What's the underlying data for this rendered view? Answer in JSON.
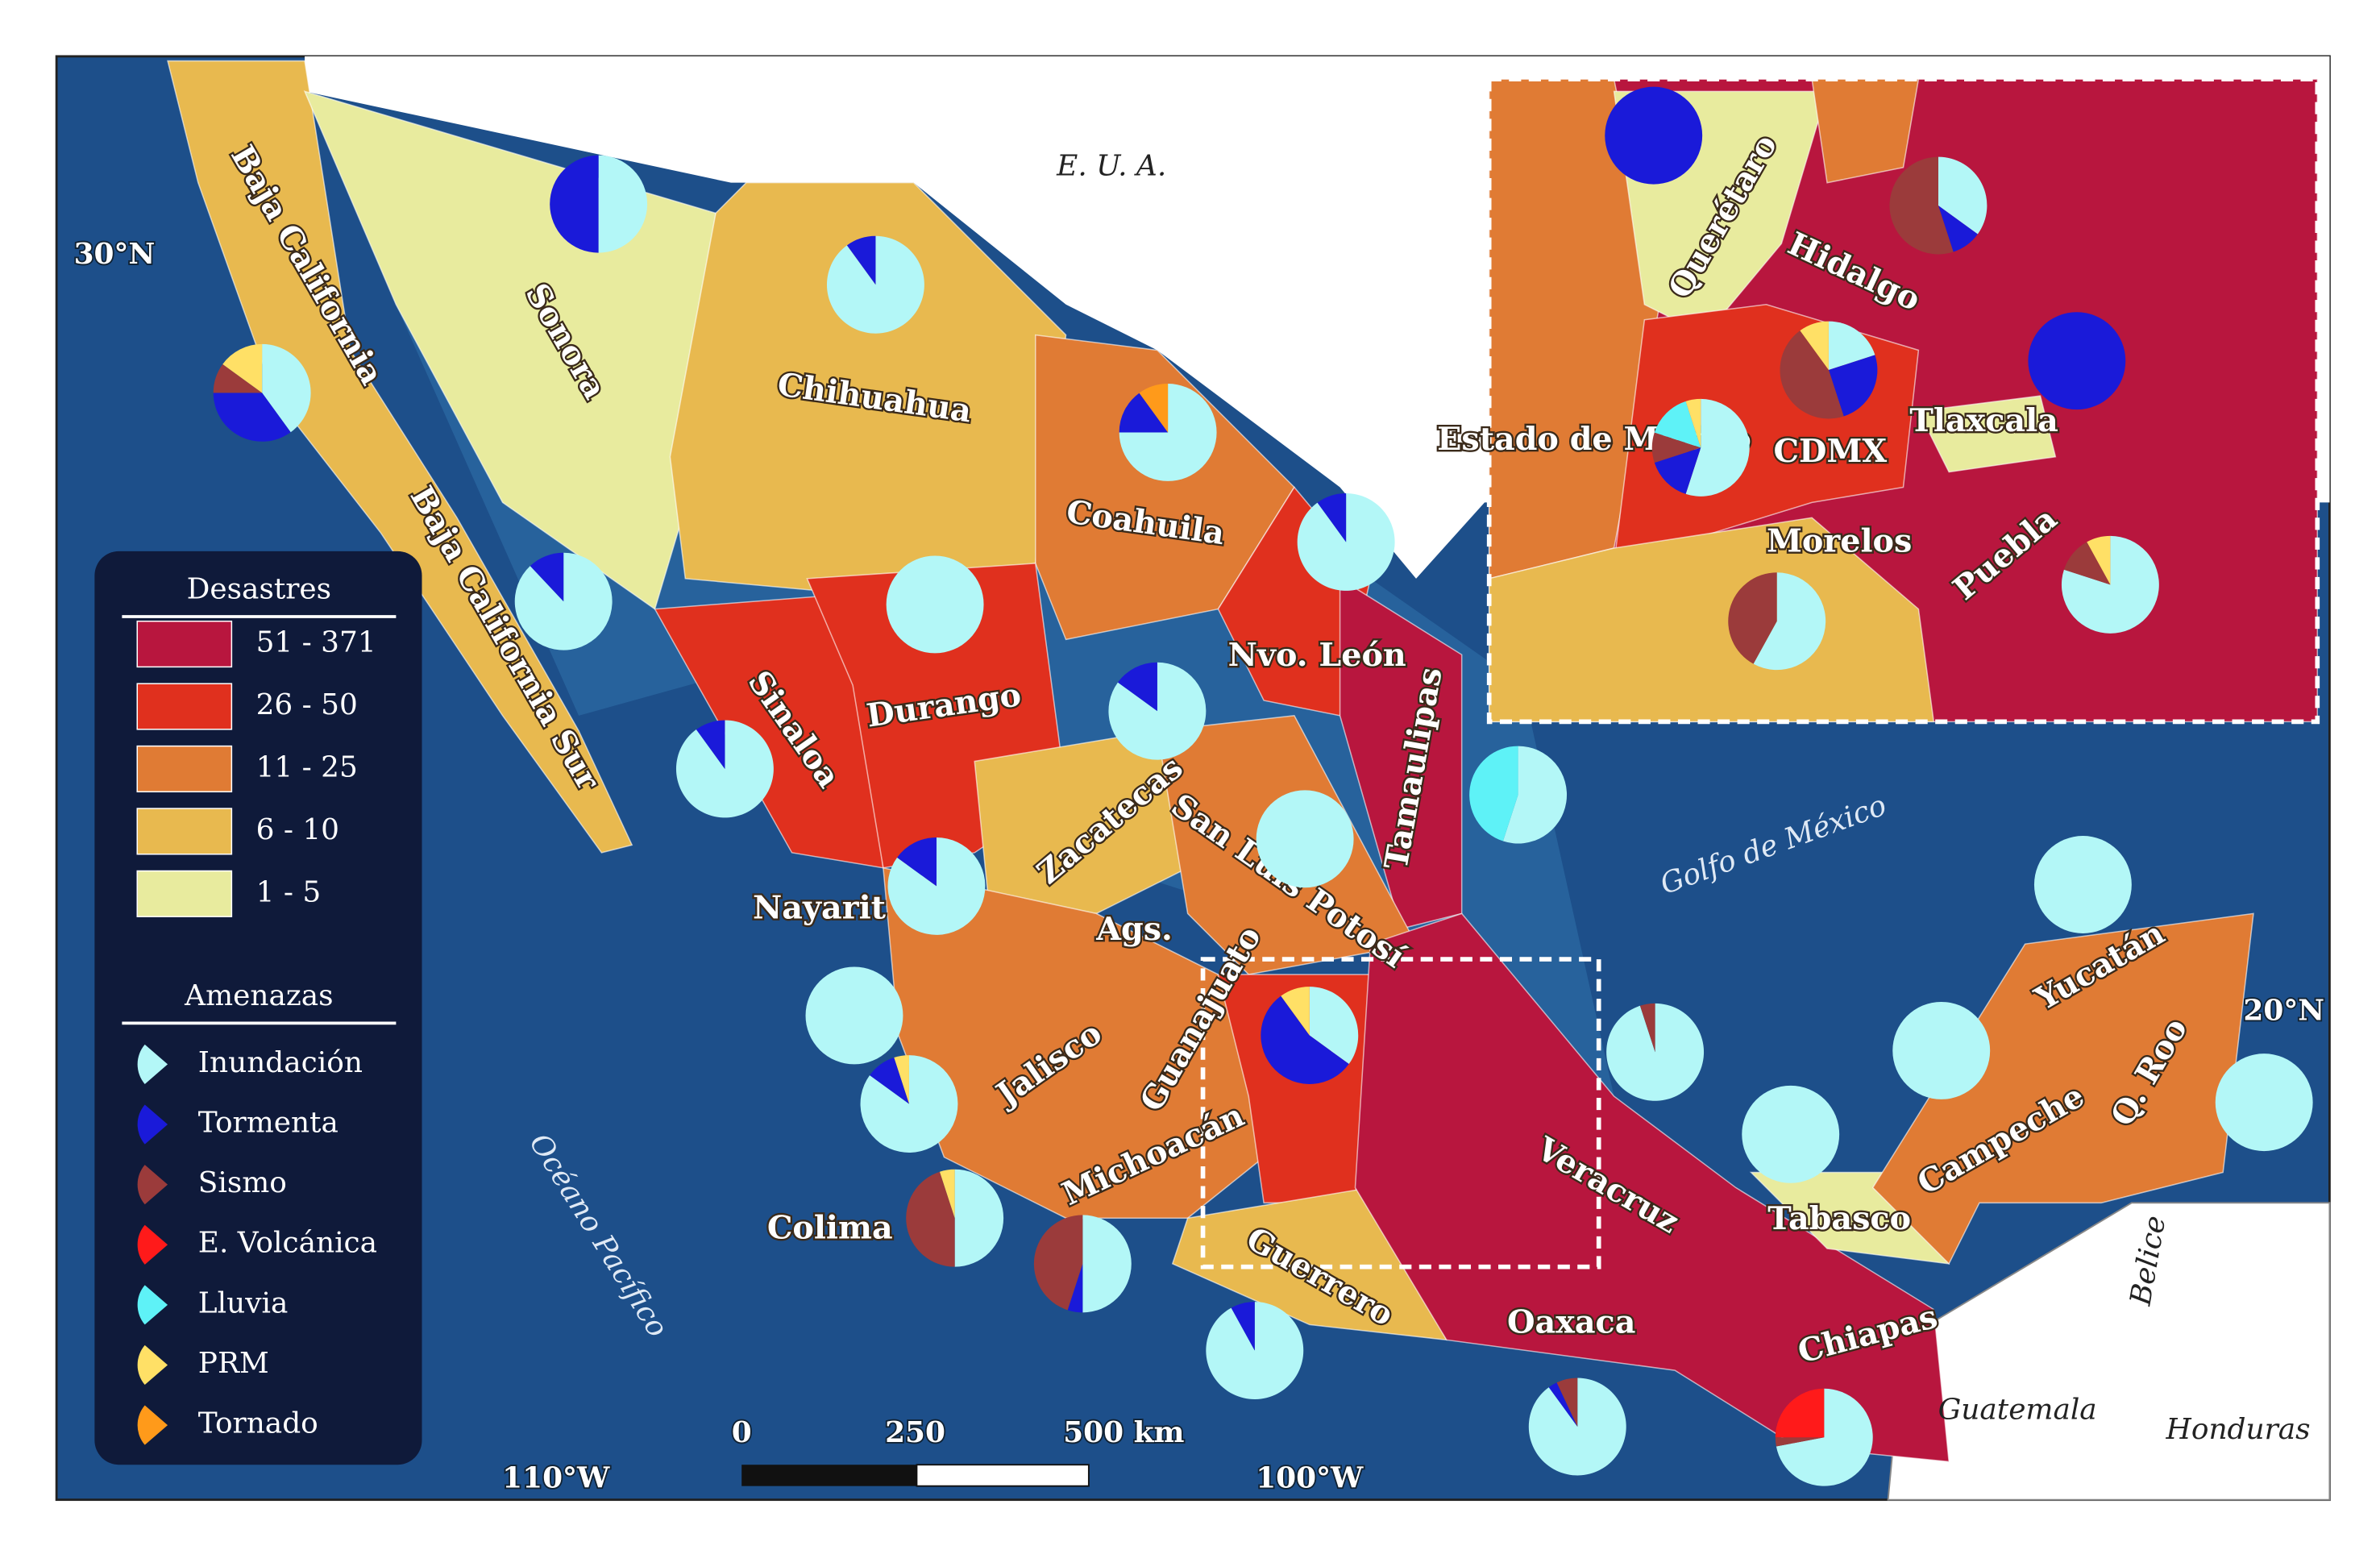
{
  "map": {
    "neighbors": [
      "E. U. A.",
      "Guatemala",
      "Honduras",
      "Belice"
    ],
    "water": [
      "Golfo de México",
      "Océano Pacífico"
    ],
    "graticule": [
      "30°N",
      "20°N",
      "110°W",
      "100°W"
    ],
    "scale": [
      "0",
      "250",
      "500 km"
    ],
    "states": [
      "Baja California",
      "Baja California Sur",
      "Sonora",
      "Chihuahua",
      "Coahuila",
      "Nvo. León",
      "Tamaulipas",
      "Sinaloa",
      "Durango",
      "Zacatecas",
      "San Luis Potosí",
      "Nayarit",
      "Ags.",
      "Guanajuato",
      "Jalisco",
      "Michoacán",
      "Colima",
      "Guerrero",
      "Oaxaca",
      "Veracruz",
      "Tabasco",
      "Campeche",
      "Q. Roo",
      "Yucatán",
      "Chiapas"
    ],
    "inset_states": [
      "Querétaro",
      "Hidalgo",
      "Estado de México",
      "CDMX",
      "Tlaxcala",
      "Morelos",
      "Puebla"
    ],
    "legend": {
      "disasters_title": "Desastres",
      "classes": [
        {
          "label": "51 - 371",
          "color": "#b8163e"
        },
        {
          "label": "26 - 50",
          "color": "#e0301e"
        },
        {
          "label": "11 - 25",
          "color": "#e07b34"
        },
        {
          "label": "6 - 10",
          "color": "#e8b94f"
        },
        {
          "label": "1 - 5",
          "color": "#e8eb9e"
        }
      ],
      "hazards_title": "Amenazas",
      "hazards": [
        {
          "name": "Inundación",
          "color": "#b3f7f7"
        },
        {
          "name": "Tormenta",
          "color": "#1a1ad9"
        },
        {
          "name": "Sismo",
          "color": "#9b3b3b"
        },
        {
          "name": "E. Volcánica",
          "color": "#ff1a1a"
        },
        {
          "name": "Lluvia",
          "color": "#5ef2f7"
        },
        {
          "name": "PRM",
          "color": "#ffe066"
        },
        {
          "name": "Tornado",
          "color": "#ff9a1a"
        }
      ]
    },
    "pies": [
      {
        "values": [
          50,
          50,
          0,
          0,
          0,
          0,
          0
        ]
      },
      {
        "values": [
          90,
          10,
          0,
          0,
          0,
          0,
          0
        ]
      },
      {
        "values": [
          40,
          35,
          10,
          0,
          0,
          15,
          0
        ]
      },
      {
        "values": [
          75,
          15,
          0,
          0,
          0,
          0,
          10
        ]
      },
      {
        "values": [
          90,
          10,
          0,
          0,
          0,
          0,
          0
        ]
      },
      {
        "values": [
          88,
          12,
          0,
          0,
          0,
          0,
          0
        ]
      },
      {
        "values": [
          100,
          0,
          0,
          0,
          0,
          0,
          0
        ]
      },
      {
        "values": [
          85,
          15,
          0,
          0,
          0,
          0,
          0
        ]
      },
      {
        "values": [
          90,
          10,
          0,
          0,
          0,
          0,
          0
        ]
      },
      {
        "values": [
          55,
          0,
          0,
          0,
          45,
          0,
          0
        ]
      },
      {
        "values": [
          100,
          0,
          0,
          0,
          0,
          0,
          0
        ]
      },
      {
        "values": [
          85,
          15,
          0,
          0,
          0,
          0,
          0
        ]
      },
      {
        "values": [
          100,
          0,
          0,
          0,
          0,
          0,
          0
        ]
      },
      {
        "values": [
          100,
          0,
          0,
          0,
          0,
          0,
          0
        ]
      },
      {
        "values": [
          35,
          55,
          0,
          0,
          0,
          10,
          0
        ]
      },
      {
        "values": [
          95,
          0,
          5,
          0,
          0,
          0,
          0
        ]
      },
      {
        "values": [
          100,
          0,
          0,
          0,
          0,
          0,
          0
        ]
      },
      {
        "values": [
          100,
          0,
          0,
          0,
          0,
          0,
          0
        ]
      },
      {
        "values": [
          85,
          10,
          0,
          0,
          0,
          5,
          0
        ]
      },
      {
        "values": [
          100,
          0,
          0,
          0,
          0,
          0,
          0
        ]
      },
      {
        "values": [
          50,
          0,
          45,
          0,
          0,
          5,
          0
        ]
      },
      {
        "values": [
          50,
          5,
          45,
          0,
          0,
          0,
          0
        ]
      },
      {
        "values": [
          92,
          8,
          0,
          0,
          0,
          0,
          0
        ]
      },
      {
        "values": [
          90,
          3,
          7,
          0,
          0,
          0,
          0
        ]
      },
      {
        "values": [
          72,
          0,
          3,
          25,
          0,
          0,
          0
        ]
      },
      {
        "values": [
          0,
          100,
          0,
          0,
          0,
          0,
          0
        ]
      },
      {
        "values": [
          35,
          10,
          55,
          0,
          0,
          0,
          0
        ]
      },
      {
        "values": [
          20,
          25,
          45,
          0,
          0,
          10,
          0
        ]
      },
      {
        "values": [
          0,
          100,
          0,
          0,
          0,
          0,
          0
        ]
      },
      {
        "values": [
          55,
          15,
          10,
          0,
          15,
          5,
          0
        ]
      },
      {
        "values": [
          80,
          0,
          12,
          0,
          0,
          8,
          0
        ]
      },
      {
        "values": [
          58,
          0,
          42,
          0,
          0,
          0,
          0
        ]
      }
    ]
  }
}
